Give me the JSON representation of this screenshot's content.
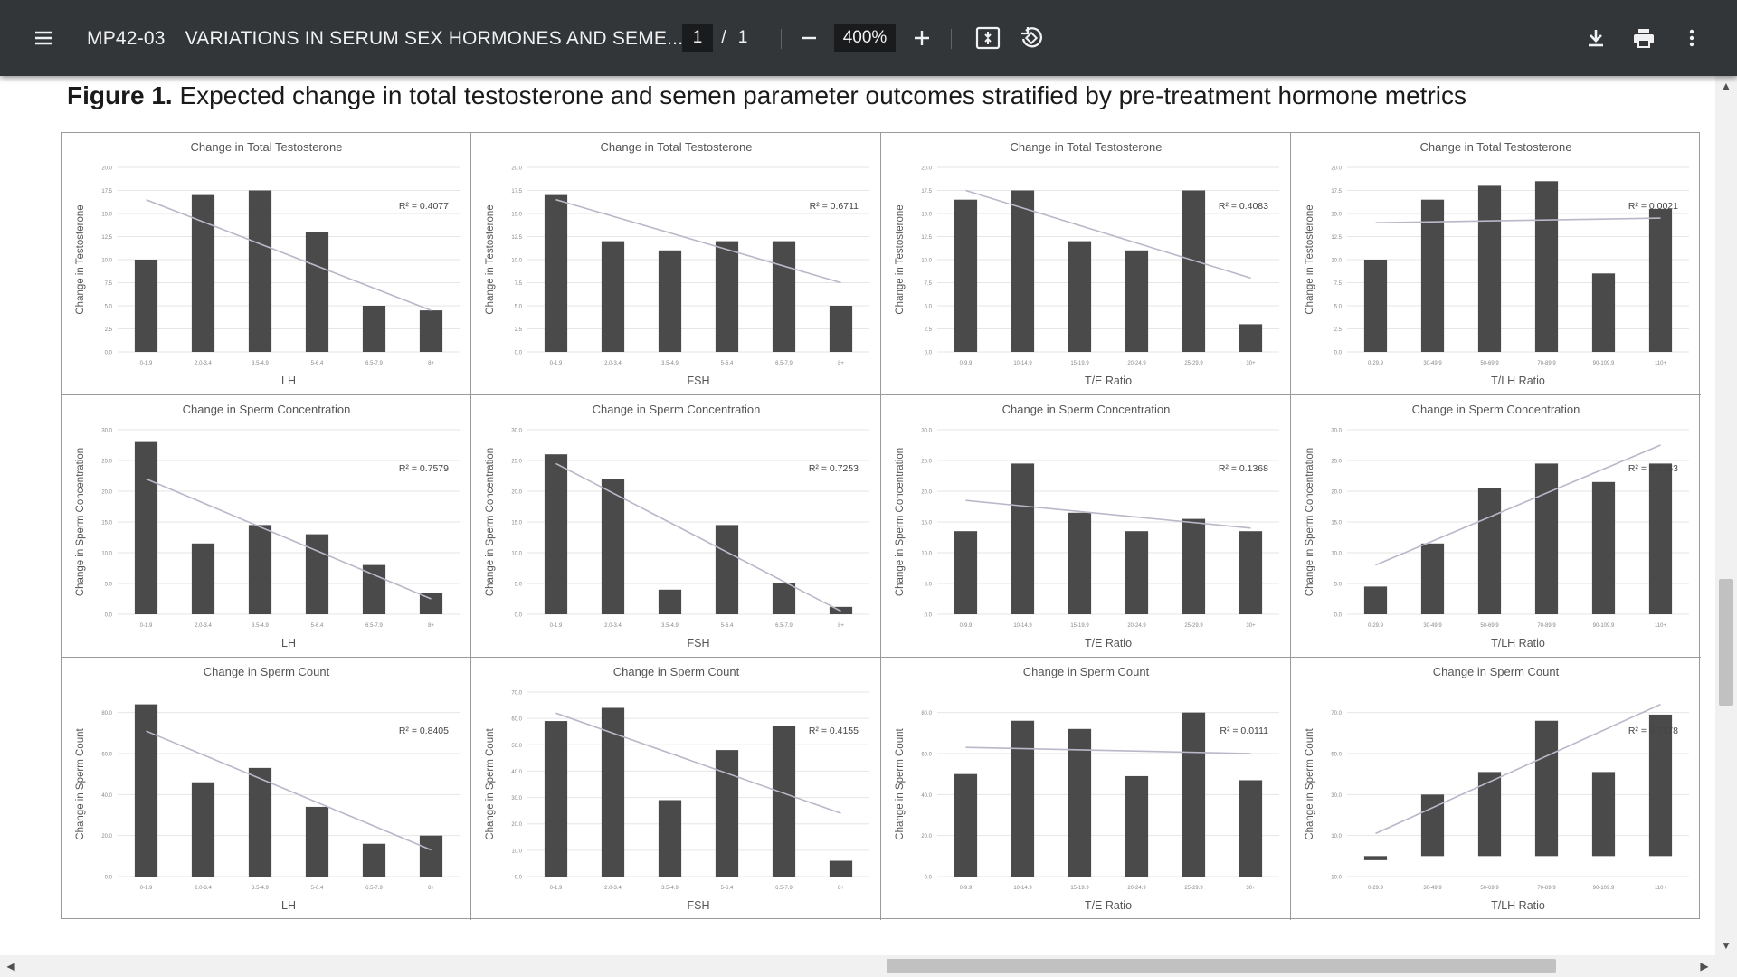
{
  "toolbar": {
    "doc_code": "MP42-03",
    "doc_title": "VARIATIONS IN SERUM SEX HORMONES AND SEME...",
    "page_current": "1",
    "page_separator": "/",
    "page_total": "1",
    "zoom": "400%",
    "icons": [
      "menu-icon",
      "zoom-out-icon",
      "zoom-in-icon",
      "fit-page-icon",
      "rotate-icon",
      "download-icon",
      "print-icon",
      "more-vert-icon"
    ]
  },
  "figure": {
    "label": "Figure 1.",
    "caption": "Expected change in total testosterone and semen parameter outcomes stratified by pre-treatment hormone metrics"
  },
  "colors": {
    "bar": "#4a4a4a",
    "trend": "#b8b8c8",
    "grid": "#e6e6e6",
    "toolbar": "#323639"
  },
  "chart_data": [
    {
      "type": "bar",
      "title": "Change in Total Testosterone",
      "xlabel": "LH",
      "ylabel": "Change in Testosterone",
      "categories": [
        "0-1.9",
        "2.0-3.4",
        "3.5-4.9",
        "5-6.4",
        "6.5-7.9",
        "8+"
      ],
      "values": [
        10,
        17,
        17.5,
        13,
        5,
        4.5
      ],
      "ylim": [
        0,
        20
      ],
      "r2": "R² = 0.4077",
      "trend": [
        16.5,
        4.5
      ]
    },
    {
      "type": "bar",
      "title": "Change in Total Testosterone",
      "xlabel": "FSH",
      "ylabel": "Change in Testosterone",
      "categories": [
        "0-1.9",
        "2.0-3.4",
        "3.5-4.9",
        "5-6.4",
        "6.5-7.9",
        "8+"
      ],
      "values": [
        17,
        12,
        11,
        12,
        12,
        5
      ],
      "ylim": [
        0,
        20
      ],
      "r2": "R² = 0.6711",
      "trend": [
        16.5,
        7.5
      ]
    },
    {
      "type": "bar",
      "title": "Change in Total Testosterone",
      "xlabel": "T/E Ratio",
      "ylabel": "Change in Testosterone",
      "categories": [
        "0-9.9",
        "10-14.9",
        "15-19.9",
        "20-24.9",
        "25-29.9",
        "30+"
      ],
      "values": [
        16.5,
        17.5,
        12,
        11,
        17.5,
        3
      ],
      "ylim": [
        0,
        20
      ],
      "r2": "R² = 0.4083",
      "trend": [
        17.5,
        8
      ]
    },
    {
      "type": "bar",
      "title": "Change in Total Testosterone",
      "xlabel": "T/LH Ratio",
      "ylabel": "Change in Testosterone",
      "categories": [
        "0-29.9",
        "30-49.9",
        "50-69.9",
        "70-89.9",
        "90-109.9",
        "110+"
      ],
      "values": [
        10,
        16.5,
        18,
        18.5,
        8.5,
        15.5
      ],
      "ylim": [
        0,
        20
      ],
      "r2": "R² = 0.0021",
      "trend": [
        14,
        14.5
      ]
    },
    {
      "type": "bar",
      "title": "Change in Sperm Concentration",
      "xlabel": "LH",
      "ylabel": "Change in Sperm Concentration",
      "categories": [
        "0-1.9",
        "2.0-3.4",
        "3.5-4.9",
        "5-6.4",
        "6.5-7.9",
        "8+"
      ],
      "values": [
        28,
        11.5,
        14.5,
        13,
        8,
        3.5
      ],
      "ylim": [
        0,
        30
      ],
      "r2": "R² = 0.7579",
      "trend": [
        22,
        2.5
      ]
    },
    {
      "type": "bar",
      "title": "Change in Sperm Concentration",
      "xlabel": "FSH",
      "ylabel": "Change in Sperm Concentration",
      "categories": [
        "0-1.9",
        "2.0-3.4",
        "3.5-4.9",
        "5-6.4",
        "6.5-7.9",
        "8+"
      ],
      "values": [
        26,
        22,
        4,
        14.5,
        5,
        1.2
      ],
      "ylim": [
        0,
        30
      ],
      "r2": "R² = 0.7253",
      "trend": [
        24.5,
        0.5
      ]
    },
    {
      "type": "bar",
      "title": "Change in Sperm Concentration",
      "xlabel": "T/E Ratio",
      "ylabel": "Change in Sperm Concentration",
      "categories": [
        "0-9.9",
        "10-14.9",
        "15-19.9",
        "20-24.9",
        "25-29.9",
        "30+"
      ],
      "values": [
        13.5,
        24.5,
        16.5,
        13.5,
        15.5,
        13.5
      ],
      "ylim": [
        0,
        30
      ],
      "r2": "R² = 0.1368",
      "trend": [
        18.5,
        14
      ]
    },
    {
      "type": "bar",
      "title": "Change in Sperm Concentration",
      "xlabel": "T/LH Ratio",
      "ylabel": "Change in Sperm Concentration",
      "categories": [
        "0-29.9",
        "30-49.9",
        "50-69.9",
        "70-89.9",
        "90-109.9",
        "110+"
      ],
      "values": [
        4.5,
        11.5,
        20.5,
        24.5,
        21.5,
        24.5
      ],
      "ylim": [
        0,
        30
      ],
      "r2": "R² = 0.7763",
      "trend": [
        8,
        27.5
      ]
    },
    {
      "type": "bar",
      "title": "Change in Sperm Count",
      "xlabel": "LH",
      "ylabel": "Change in Sperm Count",
      "categories": [
        "0-1.9",
        "2.0-3.4",
        "3.5-4.9",
        "5-6.4",
        "6.5-7.9",
        "8+"
      ],
      "values": [
        84,
        46,
        53,
        34,
        16,
        20
      ],
      "ylim": [
        0,
        90
      ],
      "r2": "R² = 0.8405",
      "trend": [
        71,
        13
      ]
    },
    {
      "type": "bar",
      "title": "Change in Sperm Count",
      "xlabel": "FSH",
      "ylabel": "Change in Sperm Count",
      "categories": [
        "0-1.9",
        "2.0-3.4",
        "3.5-4.9",
        "5-6.4",
        "6.5-7.9",
        "8+"
      ],
      "values": [
        59,
        64,
        29,
        48,
        57,
        6
      ],
      "ylim": [
        0,
        70
      ],
      "r2": "R² = 0.4155",
      "trend": [
        62,
        24
      ]
    },
    {
      "type": "bar",
      "title": "Change in Sperm Count",
      "xlabel": "T/E Ratio",
      "ylabel": "Change in Sperm Count",
      "categories": [
        "0-9.9",
        "10-14.9",
        "15-19.9",
        "20-24.9",
        "25-29.9",
        "30+"
      ],
      "values": [
        50,
        76,
        72,
        49,
        80,
        47
      ],
      "ylim": [
        0,
        90
      ],
      "r2": "R² = 0.0111",
      "trend": [
        63,
        60
      ]
    },
    {
      "type": "bar",
      "title": "Change in Sperm Count",
      "xlabel": "T/LH Ratio",
      "ylabel": "Change in Sperm Count",
      "categories": [
        "0-29.9",
        "30-49.9",
        "50-69.9",
        "70-89.9",
        "90-109.9",
        "110+"
      ],
      "values": [
        -2,
        30,
        41,
        66,
        41,
        69
      ],
      "ylim": [
        -10,
        80
      ],
      "r2": "R² = 0.7178",
      "trend": [
        11,
        74
      ]
    }
  ]
}
